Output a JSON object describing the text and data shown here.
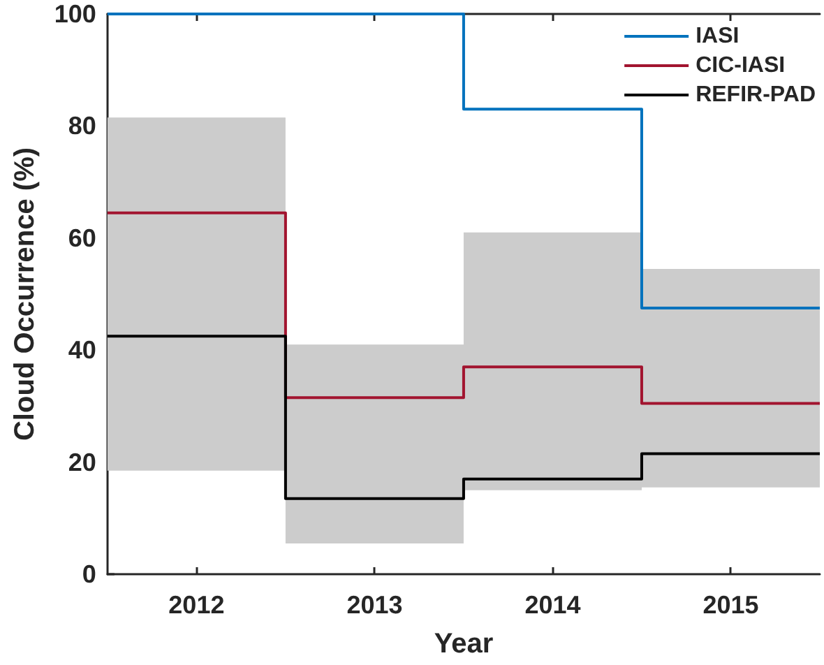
{
  "chart_data": {
    "type": "step",
    "xlabel": "Year",
    "ylabel": "Cloud Occurrence (%)",
    "x": [
      2011.5,
      2012.5,
      2013.5,
      2014.5,
      2015.5
    ],
    "xlim": [
      2011.5,
      2015.5
    ],
    "xticks": [
      2012,
      2013,
      2014,
      2015
    ],
    "ylim": [
      0,
      100
    ],
    "yticks": [
      0,
      20,
      40,
      60,
      80,
      100
    ],
    "grid": false,
    "legend": "top right",
    "marker": "none",
    "line_style": "solid",
    "series": [
      {
        "name": "IASI",
        "color": "#0072bd",
        "values": [
          100,
          100,
          83,
          47.5,
          47.5
        ]
      },
      {
        "name": "CIC-IASI",
        "color": "#a2142f",
        "values": [
          64.5,
          31.5,
          37,
          30.5,
          30.5
        ],
        "lower": [
          18.5,
          5.5,
          15,
          15.5,
          15.5
        ],
        "upper": [
          81.5,
          41,
          61,
          54.5,
          54.5
        ]
      },
      {
        "name": "REFIR-PAD",
        "color": "#000000",
        "values": [
          42.5,
          13.5,
          17,
          21.5,
          21.5
        ]
      }
    ]
  }
}
